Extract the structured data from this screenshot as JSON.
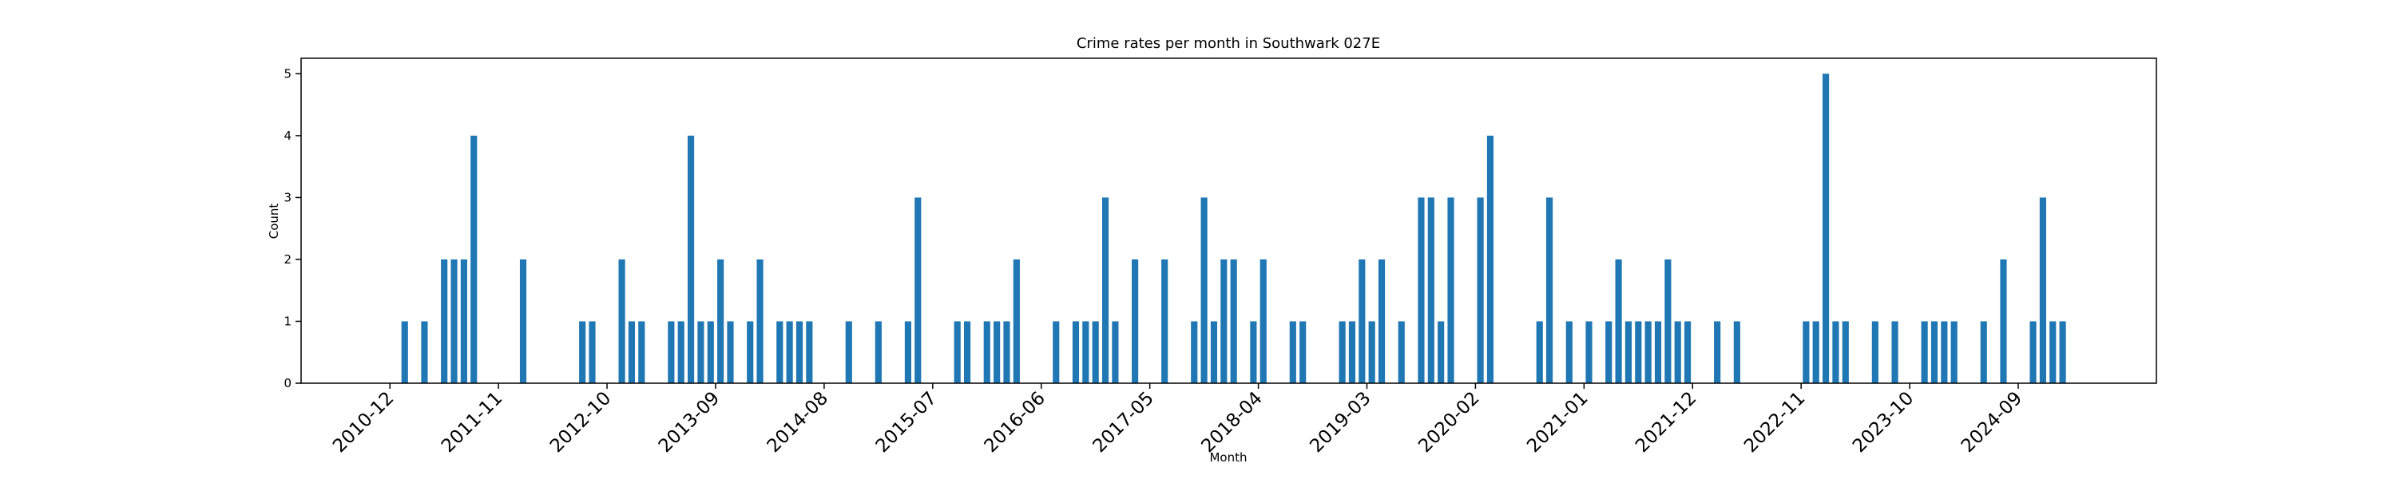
{
  "chart_data": {
    "type": "bar",
    "title": "Crime rates per month in Southwark 027E",
    "xlabel": "Month",
    "ylabel": "Count",
    "color": "#1f77b4",
    "x": [
      "2011-01",
      "2011-03",
      "2011-05",
      "2011-06",
      "2011-07",
      "2011-08",
      "2012-01",
      "2012-07",
      "2012-08",
      "2012-11",
      "2012-12",
      "2013-01",
      "2013-04",
      "2013-05",
      "2013-06",
      "2013-07",
      "2013-08",
      "2013-09",
      "2013-10",
      "2013-12",
      "2014-01",
      "2014-03",
      "2014-04",
      "2014-05",
      "2014-06",
      "2014-10",
      "2015-01",
      "2015-04",
      "2015-05",
      "2015-09",
      "2015-10",
      "2015-12",
      "2016-01",
      "2016-02",
      "2016-03",
      "2016-07",
      "2016-09",
      "2016-10",
      "2016-11",
      "2016-12",
      "2017-01",
      "2017-03",
      "2017-06",
      "2017-09",
      "2017-10",
      "2017-11",
      "2017-12",
      "2018-01",
      "2018-03",
      "2018-04",
      "2018-07",
      "2018-08",
      "2018-12",
      "2019-01",
      "2019-02",
      "2019-03",
      "2019-04",
      "2019-06",
      "2019-08",
      "2019-09",
      "2019-10",
      "2019-11",
      "2020-02",
      "2020-03",
      "2020-08",
      "2020-09",
      "2020-11",
      "2021-01",
      "2021-03",
      "2021-04",
      "2021-05",
      "2021-06",
      "2021-07",
      "2021-08",
      "2021-09",
      "2021-10",
      "2021-11",
      "2022-02",
      "2022-04",
      "2022-11",
      "2022-12",
      "2023-01",
      "2023-02",
      "2023-03",
      "2023-06",
      "2023-08",
      "2023-11",
      "2023-12",
      "2024-01",
      "2024-02",
      "2024-05",
      "2024-07",
      "2024-10",
      "2024-11",
      "2024-12",
      "2025-01"
    ],
    "values": [
      1,
      1,
      2,
      2,
      2,
      4,
      2,
      1,
      1,
      2,
      1,
      1,
      1,
      1,
      4,
      1,
      1,
      2,
      1,
      1,
      2,
      1,
      1,
      1,
      1,
      1,
      1,
      1,
      3,
      1,
      1,
      1,
      1,
      1,
      2,
      1,
      1,
      1,
      1,
      3,
      1,
      2,
      2,
      1,
      3,
      1,
      2,
      2,
      1,
      2,
      1,
      1,
      1,
      1,
      2,
      1,
      2,
      1,
      3,
      3,
      1,
      3,
      3,
      4,
      1,
      3,
      1,
      1,
      1,
      2,
      1,
      1,
      1,
      1,
      2,
      1,
      1,
      1,
      1,
      1,
      1,
      5,
      1,
      1,
      1,
      1,
      1,
      1,
      1,
      1,
      1,
      2,
      1,
      3,
      1,
      1
    ],
    "xlim": [
      "2010-03",
      "2025-11"
    ],
    "xticks": [
      "2010-12",
      "2011-11",
      "2012-10",
      "2013-09",
      "2014-08",
      "2015-07",
      "2016-06",
      "2017-05",
      "2018-04",
      "2019-03",
      "2020-02",
      "2021-01",
      "2021-12",
      "2022-11",
      "2023-10",
      "2024-09"
    ],
    "ylim": [
      0,
      5.25
    ],
    "yticks": [
      0,
      1,
      2,
      3,
      4,
      5
    ],
    "grid": false
  }
}
